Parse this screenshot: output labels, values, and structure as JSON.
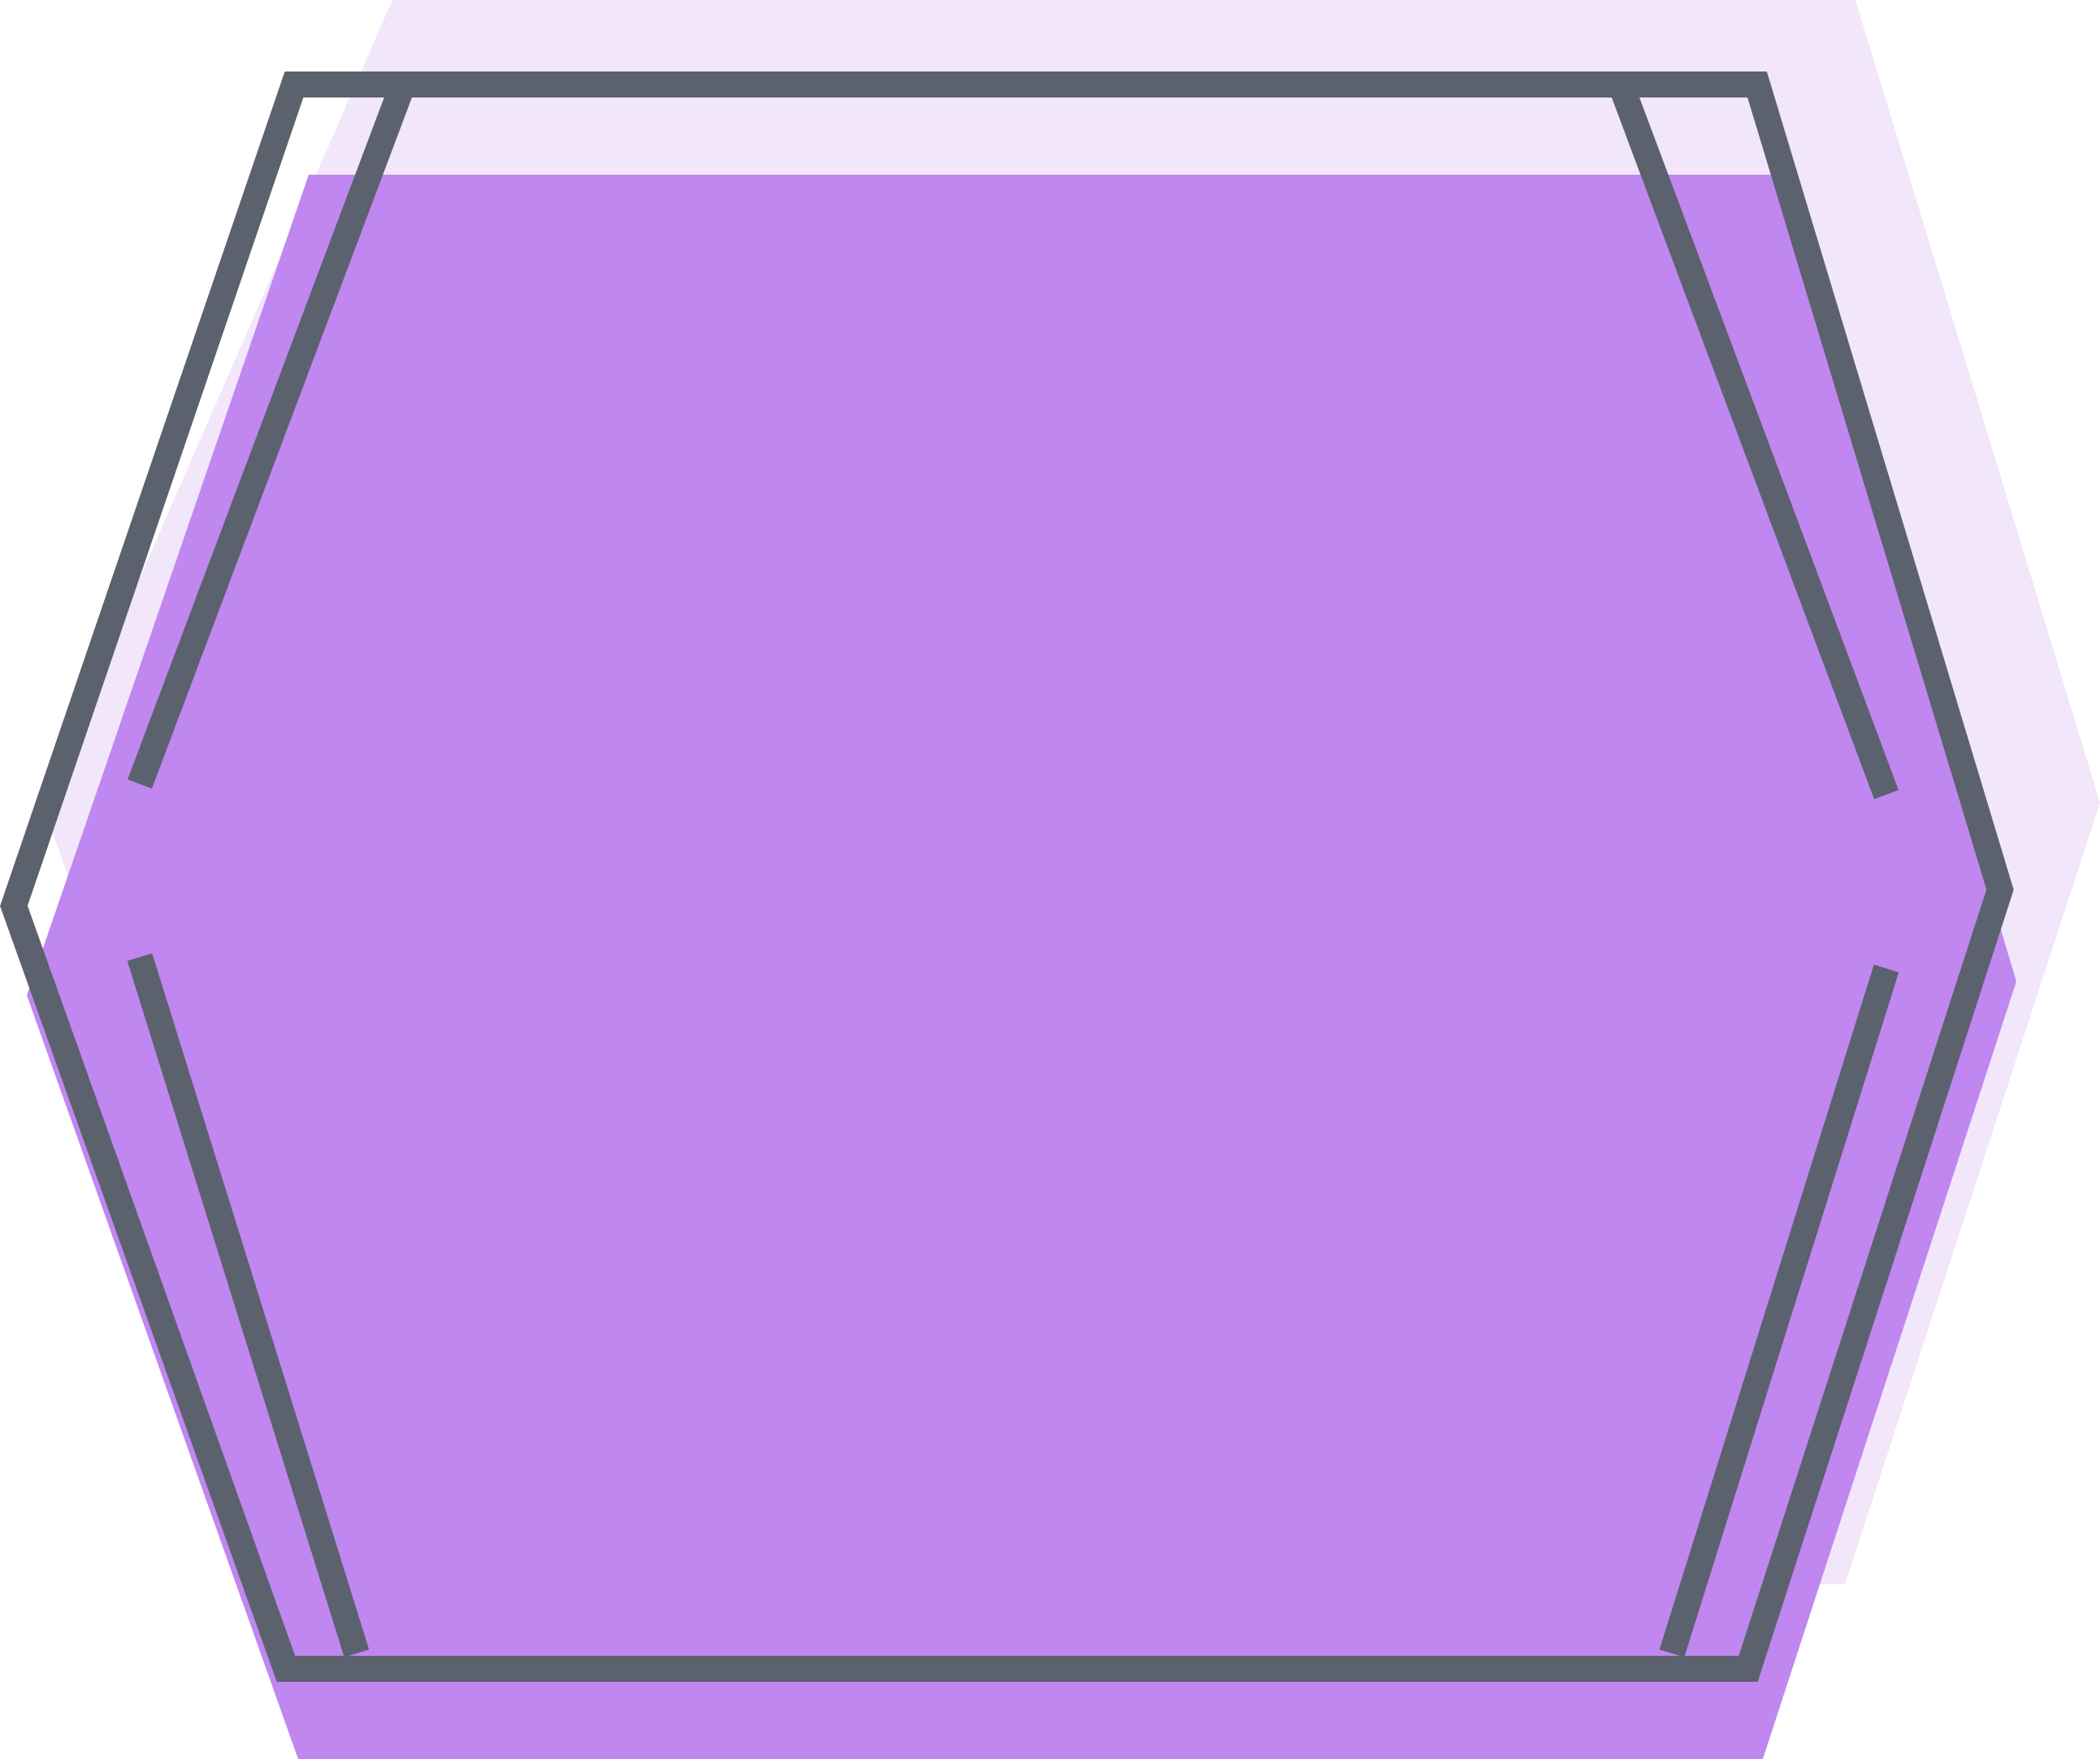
{
  "colors": {
    "background": "#ffffff",
    "back_hexagon_fill": "#f2e6fa",
    "main_hexagon_fill": "#c087f0",
    "outline_stroke": "#5c616e"
  },
  "shapes": [
    "back-hexagon",
    "main-hexagon",
    "outline-hexagon",
    "inner-bracket-top-left",
    "inner-bracket-bottom-left",
    "inner-bracket-top-right",
    "inner-bracket-bottom-right"
  ]
}
